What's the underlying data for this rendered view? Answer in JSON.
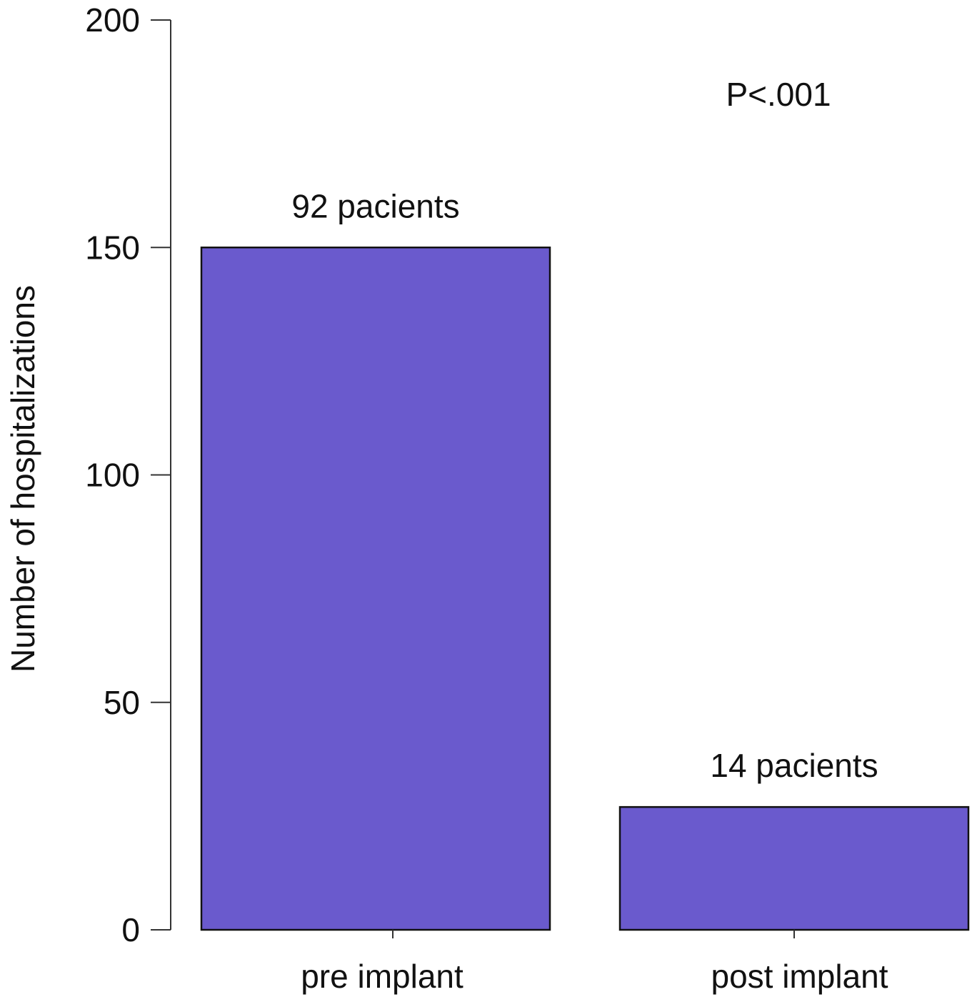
{
  "chart_data": {
    "type": "bar",
    "title": "",
    "xlabel": "",
    "ylabel": "Number of hospitalizations",
    "ylim": [
      0,
      200
    ],
    "yticks": [
      0,
      50,
      100,
      150,
      200
    ],
    "categories": [
      "pre implant",
      "post implant"
    ],
    "values": [
      150,
      27
    ],
    "bar_labels": [
      "92 pacients",
      "14 pacients"
    ],
    "annotation": "P<.001",
    "colors": {
      "bar_fill": "#6a5acd",
      "bar_stroke": "#111111",
      "axis": "#333333"
    },
    "grid": false,
    "legend": "none"
  }
}
